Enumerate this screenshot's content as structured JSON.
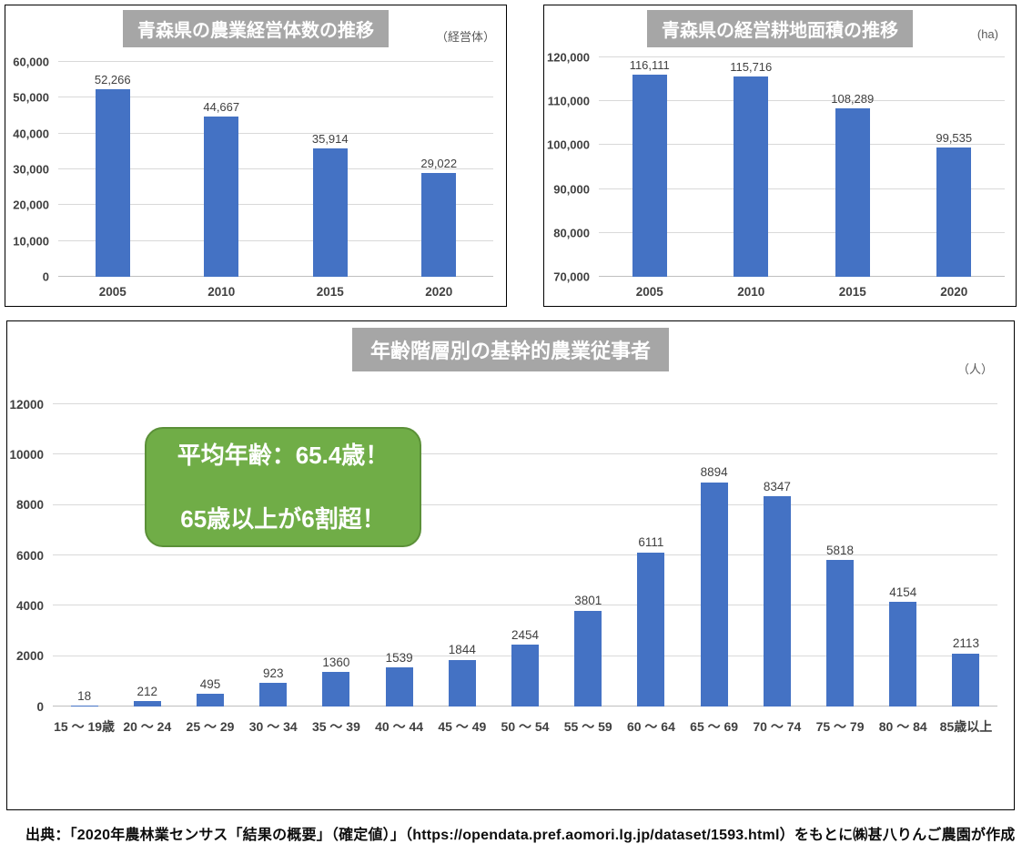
{
  "chart_data": [
    {
      "type": "bar",
      "title": "青森県の農業経営体数の推移",
      "unit": "（経営体）",
      "categories": [
        "2005",
        "2010",
        "2015",
        "2020"
      ],
      "values": [
        52266,
        44667,
        35914,
        29022
      ],
      "ylim": [
        0,
        60000
      ],
      "ytick_step": 10000,
      "tick_format": "comma",
      "grid": true,
      "legend": "none",
      "bar_color": "#4472C4",
      "title_bg_color": "#A6A6A6"
    },
    {
      "type": "bar",
      "title": "青森県の経営耕地面積の推移",
      "unit": "(ha)",
      "categories": [
        "2005",
        "2010",
        "2015",
        "2020"
      ],
      "values": [
        116111,
        115716,
        108289,
        99535
      ],
      "ylim": [
        70000,
        120000
      ],
      "ytick_step": 10000,
      "tick_format": "comma",
      "grid": true,
      "legend": "none",
      "bar_color": "#4472C4",
      "title_bg_color": "#A6A6A6"
    },
    {
      "type": "bar",
      "title": "年齢階層別の基幹的農業従事者",
      "unit": "（人）",
      "categories": [
        "15 〜 19歳",
        "20 〜 24",
        "25 〜 29",
        "30 〜 34",
        "35 〜 39",
        "40 〜 44",
        "45 〜 49",
        "50 〜 54",
        "55 〜 59",
        "60 〜 64",
        "65 〜 69",
        "70 〜 74",
        "75 〜 79",
        "80 〜 84",
        "85歳以上"
      ],
      "values": [
        18,
        212,
        495,
        923,
        1360,
        1539,
        1844,
        2454,
        3801,
        6111,
        8894,
        8347,
        5818,
        4154,
        2113
      ],
      "ylim": [
        0,
        12000
      ],
      "ytick_step": 2000,
      "tick_format": "plain",
      "grid": true,
      "legend": "none",
      "bar_color": "#4472C4",
      "title_bg_color": "#A6A6A6",
      "callout": {
        "line1": "平均年齢：65.4歳！",
        "line2": "65歳以上が6割超！",
        "fill": "#70AD47",
        "text_color": "#FFFFFF"
      }
    }
  ],
  "source": {
    "text": "出典：「2020年農林業センサス「結果の概要」（確定値）」（https://opendata.pref.aomori.lg.jp/dataset/1593.html）をもとに㈱甚八りんご農園が作成"
  }
}
